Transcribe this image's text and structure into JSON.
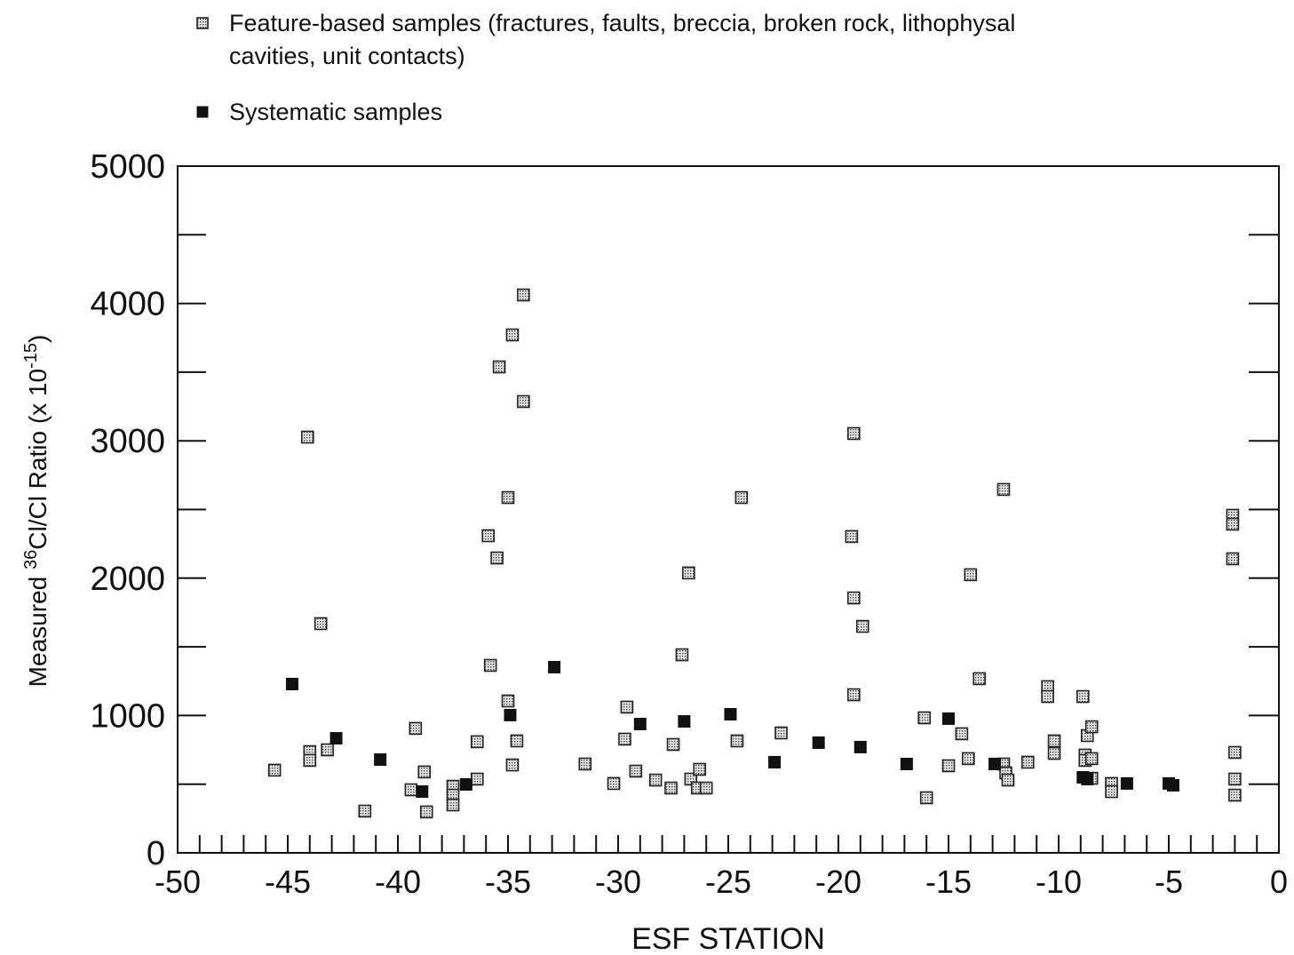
{
  "chart_data": {
    "type": "scatter",
    "xlabel": "ESF STATION",
    "ylabel_parts": [
      {
        "text": "Measured "
      },
      {
        "text": "36",
        "sup": true
      },
      {
        "text": "Cl/Cl Ratio (x 10"
      },
      {
        "text": "-15",
        "sup": true
      },
      {
        "text": ")"
      }
    ],
    "xlim": [
      -50,
      0
    ],
    "ylim": [
      0,
      5000
    ],
    "xticks": [
      -50,
      -45,
      -40,
      -35,
      -30,
      -25,
      -20,
      -15,
      -10,
      -5,
      0
    ],
    "x_minor_ticks": [
      -49,
      -48,
      -47,
      -46,
      -45,
      -44,
      -43,
      -42,
      -41,
      -40,
      -39,
      -38,
      -37,
      -36,
      -35,
      -34,
      -33,
      -32,
      -31,
      -30,
      -29,
      -28,
      -27,
      -26,
      -25,
      -24,
      -23,
      -22,
      -21,
      -20,
      -19,
      -18,
      -17,
      -16,
      -15,
      -14,
      -13,
      -12,
      -11,
      -10,
      -9,
      -8,
      -7,
      -6,
      -5,
      -4,
      -3,
      -2,
      -1
    ],
    "yticks": [
      0,
      1000,
      2000,
      3000,
      4000,
      5000
    ],
    "y_minor_ticks": [
      500,
      1000,
      1500,
      2000,
      2500,
      3000,
      3500,
      4000,
      4500
    ],
    "series": [
      {
        "name": "Feature-based samples (fractures, faults, breccia, broken rock, lithophysal cavities, unit contacts)",
        "color": "#cfcfcf",
        "marker": "stippled",
        "x": [
          -45.6,
          -44.1,
          -44.0,
          -44.0,
          -43.5,
          -43.2,
          -41.5,
          -39.2,
          -39.4,
          -38.8,
          -38.7,
          -37.5,
          -37.5,
          -37.5,
          -36.4,
          -36.4,
          -35.9,
          -35.8,
          -35.5,
          -35.4,
          -35.0,
          -35.0,
          -34.8,
          -34.8,
          -34.6,
          -34.3,
          -34.3,
          -31.5,
          -30.2,
          -29.6,
          -29.7,
          -29.2,
          -28.3,
          -27.6,
          -27.5,
          -27.1,
          -26.8,
          -26.7,
          -26.3,
          -26.4,
          -26.0,
          -24.6,
          -24.4,
          -22.6,
          -19.3,
          -19.4,
          -19.3,
          -19.3,
          -18.9,
          -16.1,
          -16.0,
          -15.0,
          -14.4,
          -14.1,
          -14.0,
          -13.6,
          -12.5,
          -12.5,
          -12.4,
          -12.3,
          -11.4,
          -10.5,
          -10.5,
          -10.2,
          -10.2,
          -8.9,
          -8.7,
          -8.5,
          -8.8,
          -8.8,
          -8.5,
          -8.5,
          -7.6,
          -7.6,
          -2.1,
          -2.1,
          -2.1,
          -2.0,
          -2.0,
          -2.0
        ],
        "values": [
          602,
          3027,
          737,
          673,
          1669,
          750,
          304,
          906,
          459,
          589,
          298,
          485,
          420,
          349,
          537,
          809,
          2309,
          1365,
          2147,
          3538,
          2587,
          1106,
          640,
          3771,
          815,
          4062,
          3286,
          647,
          505,
          1061,
          828,
          595,
          530,
          472,
          789,
          1442,
          2038,
          537,
          608,
          472,
          472,
          815,
          2587,
          873,
          3053,
          2303,
          1856,
          1151,
          1649,
          983,
          401,
          634,
          867,
          686,
          2025,
          1268,
          2646,
          647,
          582,
          530,
          660,
          1210,
          1138,
          815,
          724,
          1138,
          854,
          918,
          712,
          673,
          686,
          543,
          505,
          446,
          2458,
          2393,
          2141,
          731,
          537,
          420
        ]
      },
      {
        "name": "Systematic samples",
        "color": "#111111",
        "marker": "solid",
        "x": [
          -44.8,
          -42.8,
          -40.8,
          -38.9,
          -36.9,
          -34.9,
          -32.9,
          -29.0,
          -27.0,
          -24.9,
          -22.9,
          -20.9,
          -19.0,
          -16.9,
          -15.0,
          -12.9,
          -8.9,
          -8.7,
          -6.9,
          -5.0,
          -4.8
        ],
        "values": [
          1229,
          834,
          679,
          446,
          498,
          1003,
          1352,
          938,
          957,
          1009,
          660,
          802,
          770,
          647,
          977,
          647,
          550,
          537,
          505,
          505,
          492
        ]
      }
    ]
  }
}
